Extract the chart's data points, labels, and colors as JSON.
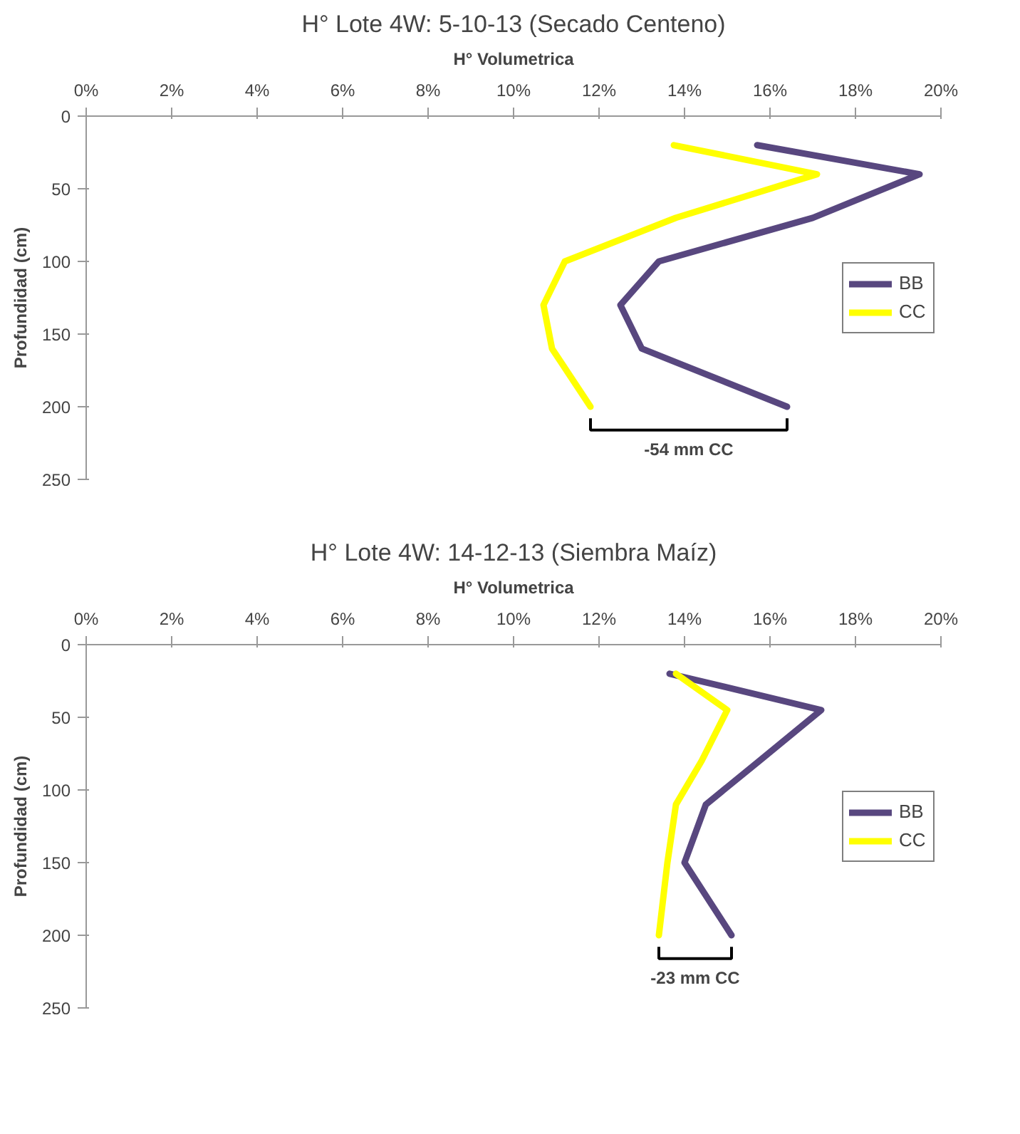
{
  "chart_data": [
    {
      "type": "line",
      "title": "H° Lote 4W: 5-10-13 (Secado Centeno)",
      "xlabel": "H° Volumetrica",
      "ylabel": "Profundidad (cm)",
      "xlim": [
        0,
        20
      ],
      "xticks": [
        {
          "value": 0,
          "label": "0%"
        },
        {
          "value": 2,
          "label": "2%"
        },
        {
          "value": 4,
          "label": "4%"
        },
        {
          "value": 6,
          "label": "6%"
        },
        {
          "value": 8,
          "label": "8%"
        },
        {
          "value": 10,
          "label": "10%"
        },
        {
          "value": 12,
          "label": "12%"
        },
        {
          "value": 14,
          "label": "14%"
        },
        {
          "value": 16,
          "label": "16%"
        },
        {
          "value": 18,
          "label": "18%"
        },
        {
          "value": 20,
          "label": "20%"
        }
      ],
      "ylim": [
        250,
        0
      ],
      "yticks": [
        0,
        50,
        100,
        150,
        200,
        250
      ],
      "grid": false,
      "legend": "right",
      "series": [
        {
          "name": "BB",
          "color": "#58477f",
          "x": [
            15.7,
            19.5,
            17.0,
            13.4,
            12.5,
            13.0,
            16.4
          ],
          "values": [
            20,
            40,
            70,
            100,
            130,
            160,
            200
          ]
        },
        {
          "name": "CC",
          "color": "#ffff00",
          "x": [
            13.75,
            17.1,
            13.8,
            11.2,
            10.7,
            10.9,
            11.8
          ],
          "values": [
            20,
            40,
            70,
            100,
            130,
            160,
            200
          ]
        }
      ],
      "annotations": [
        "-54 mm CC"
      ]
    },
    {
      "type": "line",
      "title": "H° Lote 4W: 14-12-13 (Siembra Maíz)",
      "xlabel": "H° Volumetrica",
      "ylabel": "Profundidad (cm)",
      "xlim": [
        0,
        20
      ],
      "xticks": [
        {
          "value": 0,
          "label": "0%"
        },
        {
          "value": 2,
          "label": "2%"
        },
        {
          "value": 4,
          "label": "4%"
        },
        {
          "value": 6,
          "label": "6%"
        },
        {
          "value": 8,
          "label": "8%"
        },
        {
          "value": 10,
          "label": "10%"
        },
        {
          "value": 12,
          "label": "12%"
        },
        {
          "value": 14,
          "label": "14%"
        },
        {
          "value": 16,
          "label": "16%"
        },
        {
          "value": 18,
          "label": "18%"
        },
        {
          "value": 20,
          "label": "20%"
        }
      ],
      "ylim": [
        250,
        0
      ],
      "yticks": [
        0,
        50,
        100,
        150,
        200,
        250
      ],
      "grid": false,
      "legend": "right",
      "series": [
        {
          "name": "BB",
          "color": "#58477f",
          "x": [
            13.65,
            17.2,
            15.75,
            14.5,
            14.0,
            15.1
          ],
          "values": [
            20,
            45,
            80,
            110,
            150,
            200
          ]
        },
        {
          "name": "CC",
          "color": "#ffff00",
          "x": [
            13.8,
            15.0,
            14.4,
            13.8,
            13.6,
            13.4
          ],
          "values": [
            20,
            45,
            80,
            110,
            150,
            200
          ]
        }
      ],
      "annotations": [
        "-23 mm CC"
      ]
    }
  ]
}
